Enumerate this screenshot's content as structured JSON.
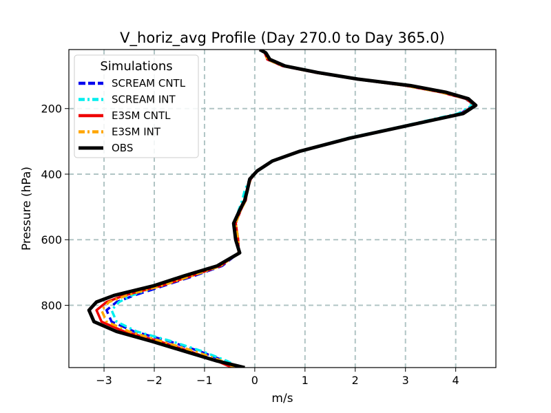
{
  "chart_data": {
    "type": "line",
    "title": "V_horiz_avg Profile (Day 270.0 to Day 365.0)",
    "xlabel": "m/s",
    "ylabel": "Pressure (hPa)",
    "xlim": [
      -3.7,
      4.8
    ],
    "ylim": [
      990,
      20
    ],
    "y_inverted": true,
    "grid": true,
    "x_ticks": [
      -3,
      -2,
      -1,
      0,
      1,
      2,
      3,
      4
    ],
    "x_tick_labels": [
      "−3",
      "−2",
      "−1",
      "0",
      "1",
      "2",
      "3",
      "4"
    ],
    "y_ticks": [
      200,
      400,
      600,
      800
    ],
    "y_tick_labels": [
      "200",
      "400",
      "600",
      "800"
    ],
    "legend": {
      "title": "Simulations",
      "placement": "top-left"
    },
    "series": [
      {
        "name": "SCREAM CNTL",
        "color": "#0000ee",
        "dash": "dashed",
        "pressure": [
          20,
          30,
          50,
          70,
          90,
          110,
          130,
          150,
          170,
          190,
          215,
          250,
          290,
          330,
          360,
          390,
          415,
          450,
          480,
          510,
          550,
          600,
          640,
          680,
          710,
          740,
          770,
          790,
          815,
          850,
          880,
          910,
          940,
          970,
          990
        ],
        "values": [
          0.1,
          0.2,
          0.25,
          0.55,
          1.2,
          2.0,
          3.0,
          3.7,
          4.2,
          4.35,
          4.1,
          3.1,
          1.9,
          0.9,
          0.35,
          0.05,
          -0.08,
          -0.15,
          -0.18,
          -0.28,
          -0.38,
          -0.33,
          -0.32,
          -0.65,
          -1.2,
          -1.8,
          -2.4,
          -2.75,
          -2.95,
          -2.85,
          -2.4,
          -1.7,
          -1.1,
          -0.6,
          -0.35
        ]
      },
      {
        "name": "SCREAM INT",
        "color": "#00eeee",
        "dash": "dashdot",
        "pressure": [
          20,
          30,
          50,
          70,
          90,
          110,
          130,
          150,
          170,
          190,
          215,
          250,
          290,
          330,
          360,
          390,
          415,
          450,
          480,
          510,
          550,
          600,
          640,
          680,
          710,
          740,
          770,
          790,
          815,
          850,
          880,
          910,
          940,
          970,
          990
        ],
        "values": [
          0.1,
          0.22,
          0.28,
          0.58,
          1.22,
          2.0,
          3.0,
          3.72,
          4.2,
          4.33,
          4.05,
          3.05,
          1.85,
          0.88,
          0.33,
          0.05,
          -0.1,
          -0.2,
          -0.25,
          -0.32,
          -0.4,
          -0.33,
          -0.32,
          -0.7,
          -1.3,
          -1.9,
          -2.45,
          -2.7,
          -2.85,
          -2.75,
          -2.35,
          -1.65,
          -1.05,
          -0.55,
          -0.3
        ]
      },
      {
        "name": "E3SM CNTL",
        "color": "#ee0000",
        "dash": "solid",
        "pressure": [
          20,
          30,
          50,
          70,
          90,
          110,
          130,
          150,
          170,
          190,
          215,
          250,
          290,
          330,
          360,
          390,
          415,
          450,
          480,
          510,
          550,
          600,
          640,
          680,
          710,
          740,
          770,
          790,
          815,
          850,
          880,
          910,
          940,
          970,
          990
        ],
        "values": [
          0.1,
          0.2,
          0.25,
          0.55,
          1.2,
          2.0,
          3.0,
          3.7,
          4.2,
          4.38,
          4.12,
          3.12,
          1.92,
          0.92,
          0.36,
          0.05,
          -0.08,
          -0.15,
          -0.18,
          -0.28,
          -0.38,
          -0.33,
          -0.32,
          -0.68,
          -1.25,
          -1.85,
          -2.6,
          -2.95,
          -3.15,
          -3.05,
          -2.6,
          -1.9,
          -1.3,
          -0.75,
          -0.45
        ]
      },
      {
        "name": "E3SM INT",
        "color": "#ffa500",
        "dash": "dashdot",
        "pressure": [
          20,
          30,
          50,
          70,
          90,
          110,
          130,
          150,
          170,
          190,
          215,
          250,
          290,
          330,
          360,
          390,
          415,
          450,
          480,
          510,
          550,
          600,
          640,
          680,
          710,
          740,
          770,
          790,
          815,
          850,
          880,
          910,
          940,
          970,
          990
        ],
        "values": [
          0.1,
          0.2,
          0.25,
          0.55,
          1.2,
          2.0,
          3.0,
          3.7,
          4.22,
          4.4,
          4.12,
          3.12,
          1.92,
          0.92,
          0.36,
          0.05,
          -0.08,
          -0.15,
          -0.18,
          -0.28,
          -0.38,
          -0.33,
          -0.32,
          -0.68,
          -1.25,
          -1.85,
          -2.55,
          -2.9,
          -3.05,
          -2.95,
          -2.5,
          -1.85,
          -1.2,
          -0.65,
          -0.4
        ]
      },
      {
        "name": "OBS",
        "color": "#000000",
        "dash": "solid",
        "pressure": [
          20,
          30,
          50,
          70,
          90,
          110,
          130,
          150,
          170,
          190,
          215,
          250,
          290,
          330,
          360,
          390,
          415,
          450,
          480,
          510,
          550,
          600,
          640,
          680,
          710,
          740,
          770,
          790,
          815,
          850,
          880,
          910,
          940,
          970,
          990
        ],
        "values": [
          0.1,
          0.22,
          0.3,
          0.6,
          1.25,
          2.05,
          3.1,
          3.8,
          4.25,
          4.4,
          4.15,
          3.1,
          1.9,
          0.9,
          0.35,
          0.05,
          -0.1,
          -0.15,
          -0.2,
          -0.3,
          -0.42,
          -0.38,
          -0.3,
          -0.75,
          -1.4,
          -2.0,
          -2.8,
          -3.15,
          -3.3,
          -3.2,
          -2.75,
          -2.05,
          -1.4,
          -0.75,
          -0.2
        ]
      }
    ]
  }
}
